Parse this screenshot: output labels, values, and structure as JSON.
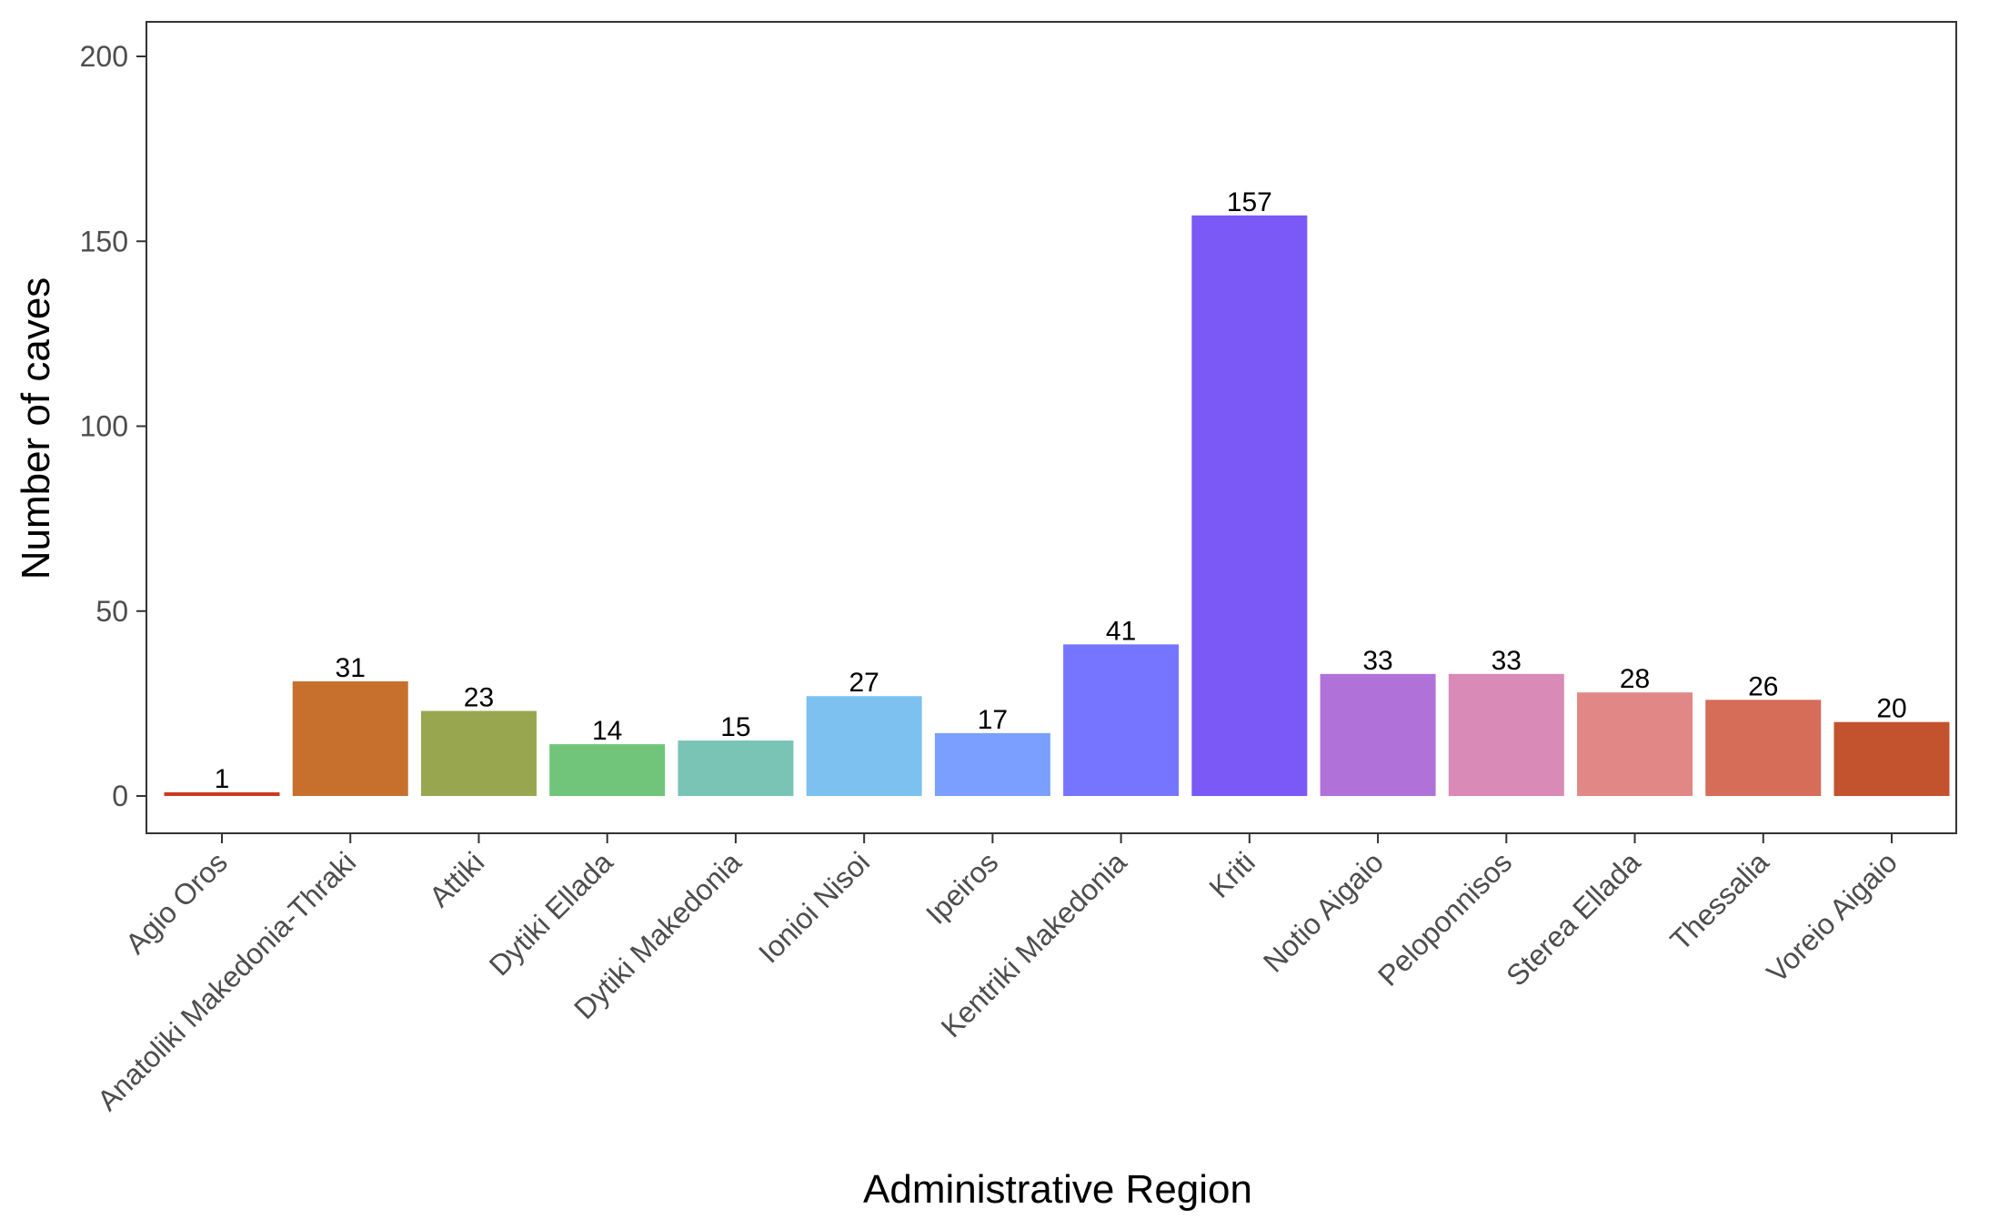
{
  "chart_data": {
    "type": "bar",
    "xlabel": "Administrative Region",
    "ylabel": "Number of caves",
    "ylim": [
      0,
      210
    ],
    "y_ticks": [
      0,
      50,
      100,
      150,
      200
    ],
    "y_tick_labels": [
      "0",
      "50",
      "100",
      "150",
      "200"
    ],
    "grid": false,
    "legend": "none",
    "x_tick_label_rotation_deg": 45,
    "categories": [
      "Agio Oros",
      "Anatoliki Makedonia-Thraki",
      "Attiki",
      "Dytiki Ellada",
      "Dytiki Makedonia",
      "Ionioi Nisoi",
      "Ipeiros",
      "Kentriki Makedonia",
      "Kriti",
      "Notio Aigaio",
      "Peloponnisos",
      "Sterea Ellada",
      "Thessalia",
      "Voreio Aigaio"
    ],
    "values": [
      1,
      31,
      23,
      14,
      15,
      27,
      17,
      41,
      157,
      33,
      33,
      28,
      26,
      20
    ],
    "data_labels": [
      "1",
      "31",
      "23",
      "14",
      "15",
      "27",
      "17",
      "41",
      "157",
      "33",
      "33",
      "28",
      "26",
      "20"
    ],
    "colors": [
      "#CC3A1E",
      "#C7702E",
      "#98A650",
      "#70C57A",
      "#79C4B5",
      "#7CC1F0",
      "#7A9FFF",
      "#7575FF",
      "#7A59F6",
      "#B072D9",
      "#D98AB7",
      "#E18785",
      "#D56D58",
      "#C3532E"
    ]
  }
}
